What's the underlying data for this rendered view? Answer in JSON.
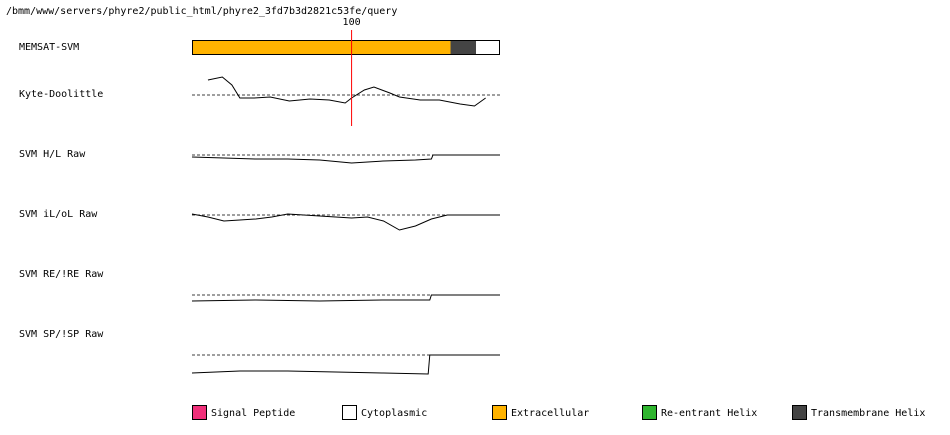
{
  "header": {
    "path": "/bmm/www/servers/phyre2/public_html/phyre2_3fd7b3d2821c53fe/query"
  },
  "chart_data": {
    "type": "tracks",
    "xlim": [
      0,
      193
    ],
    "ylim": [
      -2,
      2
    ],
    "marker": {
      "value": 100,
      "color": "#ff0000"
    },
    "tracks": [
      {
        "name": "MEMSAT-SVM",
        "segments": [
          {
            "start": 0,
            "end": 162,
            "color": "#ffb300"
          },
          {
            "start": 162,
            "end": 178,
            "color": "#444444"
          },
          {
            "start": 178,
            "end": 193,
            "color": "#ffffff"
          }
        ]
      },
      {
        "name": "Kyte-Doolittle",
        "x": [
          10,
          19,
          25,
          30,
          39,
          49,
          61,
          74,
          86,
          96,
          100,
          108,
          114,
          124,
          130,
          143,
          155,
          168,
          177,
          184
        ],
        "values": [
          1.5,
          1.8,
          1,
          -0.3,
          -0.3,
          -0.2,
          -0.6,
          -0.4,
          -0.5,
          -0.8,
          -0.3,
          0.5,
          0.8,
          0.2,
          -0.2,
          -0.5,
          -0.5,
          -0.9,
          -1.1,
          -0.3
        ]
      },
      {
        "name": "SVM H/L Raw",
        "x": [
          0,
          20,
          40,
          60,
          80,
          100,
          120,
          140,
          150,
          151,
          193
        ],
        "values": [
          -0.2,
          -0.3,
          -0.4,
          -0.4,
          -0.5,
          -0.8,
          -0.6,
          -0.5,
          -0.4,
          0,
          0
        ]
      },
      {
        "name": "SVM iL/oL Raw",
        "x": [
          0,
          10,
          20,
          30,
          40,
          50,
          60,
          70,
          80,
          90,
          100,
          110,
          120,
          130,
          140,
          150,
          160,
          170,
          193
        ],
        "values": [
          0.1,
          -0.2,
          -0.6,
          -0.5,
          -0.4,
          -0.2,
          0.1,
          0,
          -0.1,
          -0.2,
          -0.3,
          -0.2,
          -0.6,
          -1.5,
          -1.1,
          -0.4,
          0,
          0,
          0
        ]
      },
      {
        "name": "SVM RE/!RE Raw",
        "x": [
          0,
          40,
          80,
          120,
          149,
          150,
          193
        ],
        "values": [
          -0.6,
          -0.5,
          -0.6,
          -0.5,
          -0.5,
          0,
          0
        ]
      },
      {
        "name": "SVM SP/!SP Raw",
        "x": [
          0,
          30,
          60,
          90,
          120,
          148,
          149,
          193
        ],
        "values": [
          -1.8,
          -1.6,
          -1.6,
          -1.7,
          -1.8,
          -1.9,
          0,
          0
        ]
      }
    ],
    "legend": [
      {
        "name": "Signal Peptide",
        "color": "#f0307a"
      },
      {
        "name": "Cytoplasmic",
        "color": "#ffffff"
      },
      {
        "name": "Extracellular",
        "color": "#ffb300"
      },
      {
        "name": "Re-entrant Helix",
        "color": "#2fb52f"
      },
      {
        "name": "Transmembrane Helix",
        "color": "#444444"
      }
    ]
  }
}
